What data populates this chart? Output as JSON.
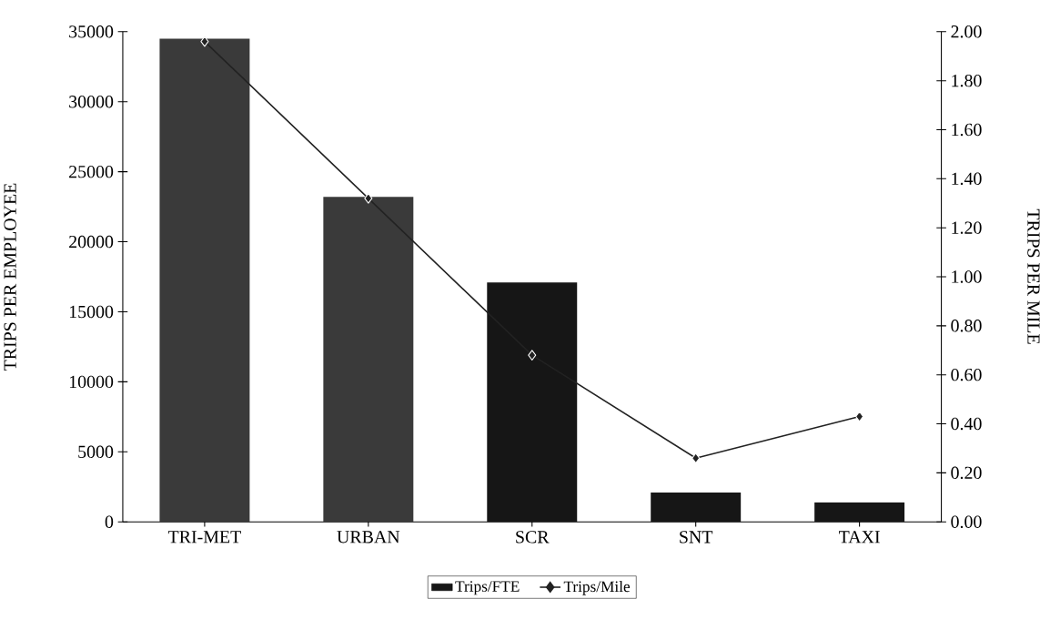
{
  "chart_data": {
    "type": "bar",
    "categories": [
      "TRI-MET",
      "URBAN",
      "SCR",
      "SNT",
      "TAXI"
    ],
    "ylabel": "TRIPS PER EMPLOYEE",
    "y2label": "TRIPS PER MILE",
    "ylim": [
      0,
      35000
    ],
    "yticks": [
      0,
      5000,
      10000,
      15000,
      20000,
      25000,
      30000,
      35000
    ],
    "y2lim": [
      0,
      2
    ],
    "y2ticks": [
      {
        "value": 0,
        "label": "0.00"
      },
      {
        "value": 0.2,
        "label": "0.20"
      },
      {
        "value": 0.4,
        "label": "0.40"
      },
      {
        "value": 0.6,
        "label": "0.60"
      },
      {
        "value": 0.8,
        "label": "0.80"
      },
      {
        "value": 1,
        "label": "1.00"
      },
      {
        "value": 1.2,
        "label": "1.20"
      },
      {
        "value": 1.4,
        "label": "1.40"
      },
      {
        "value": 1.6,
        "label": "1.60"
      },
      {
        "value": 1.8,
        "label": "1.80"
      },
      {
        "value": 2,
        "label": "2.00"
      }
    ],
    "series": [
      {
        "name": "Trips/FTE",
        "color": "#161616",
        "colors": [
          "#3a3a3a",
          "#3a3a3a",
          "#161616",
          "#161616",
          "#161616"
        ],
        "values": [
          34500,
          23200,
          17100,
          2100,
          1400
        ]
      },
      {
        "name": "Trips/Mile",
        "type": "line",
        "axis": "y2",
        "color": "#222222",
        "values": [
          1.96,
          1.32,
          0.68,
          0.26,
          0.43
        ]
      }
    ],
    "marker": "diamond",
    "line_style": "solid",
    "legend": "bottom",
    "grid": false
  }
}
